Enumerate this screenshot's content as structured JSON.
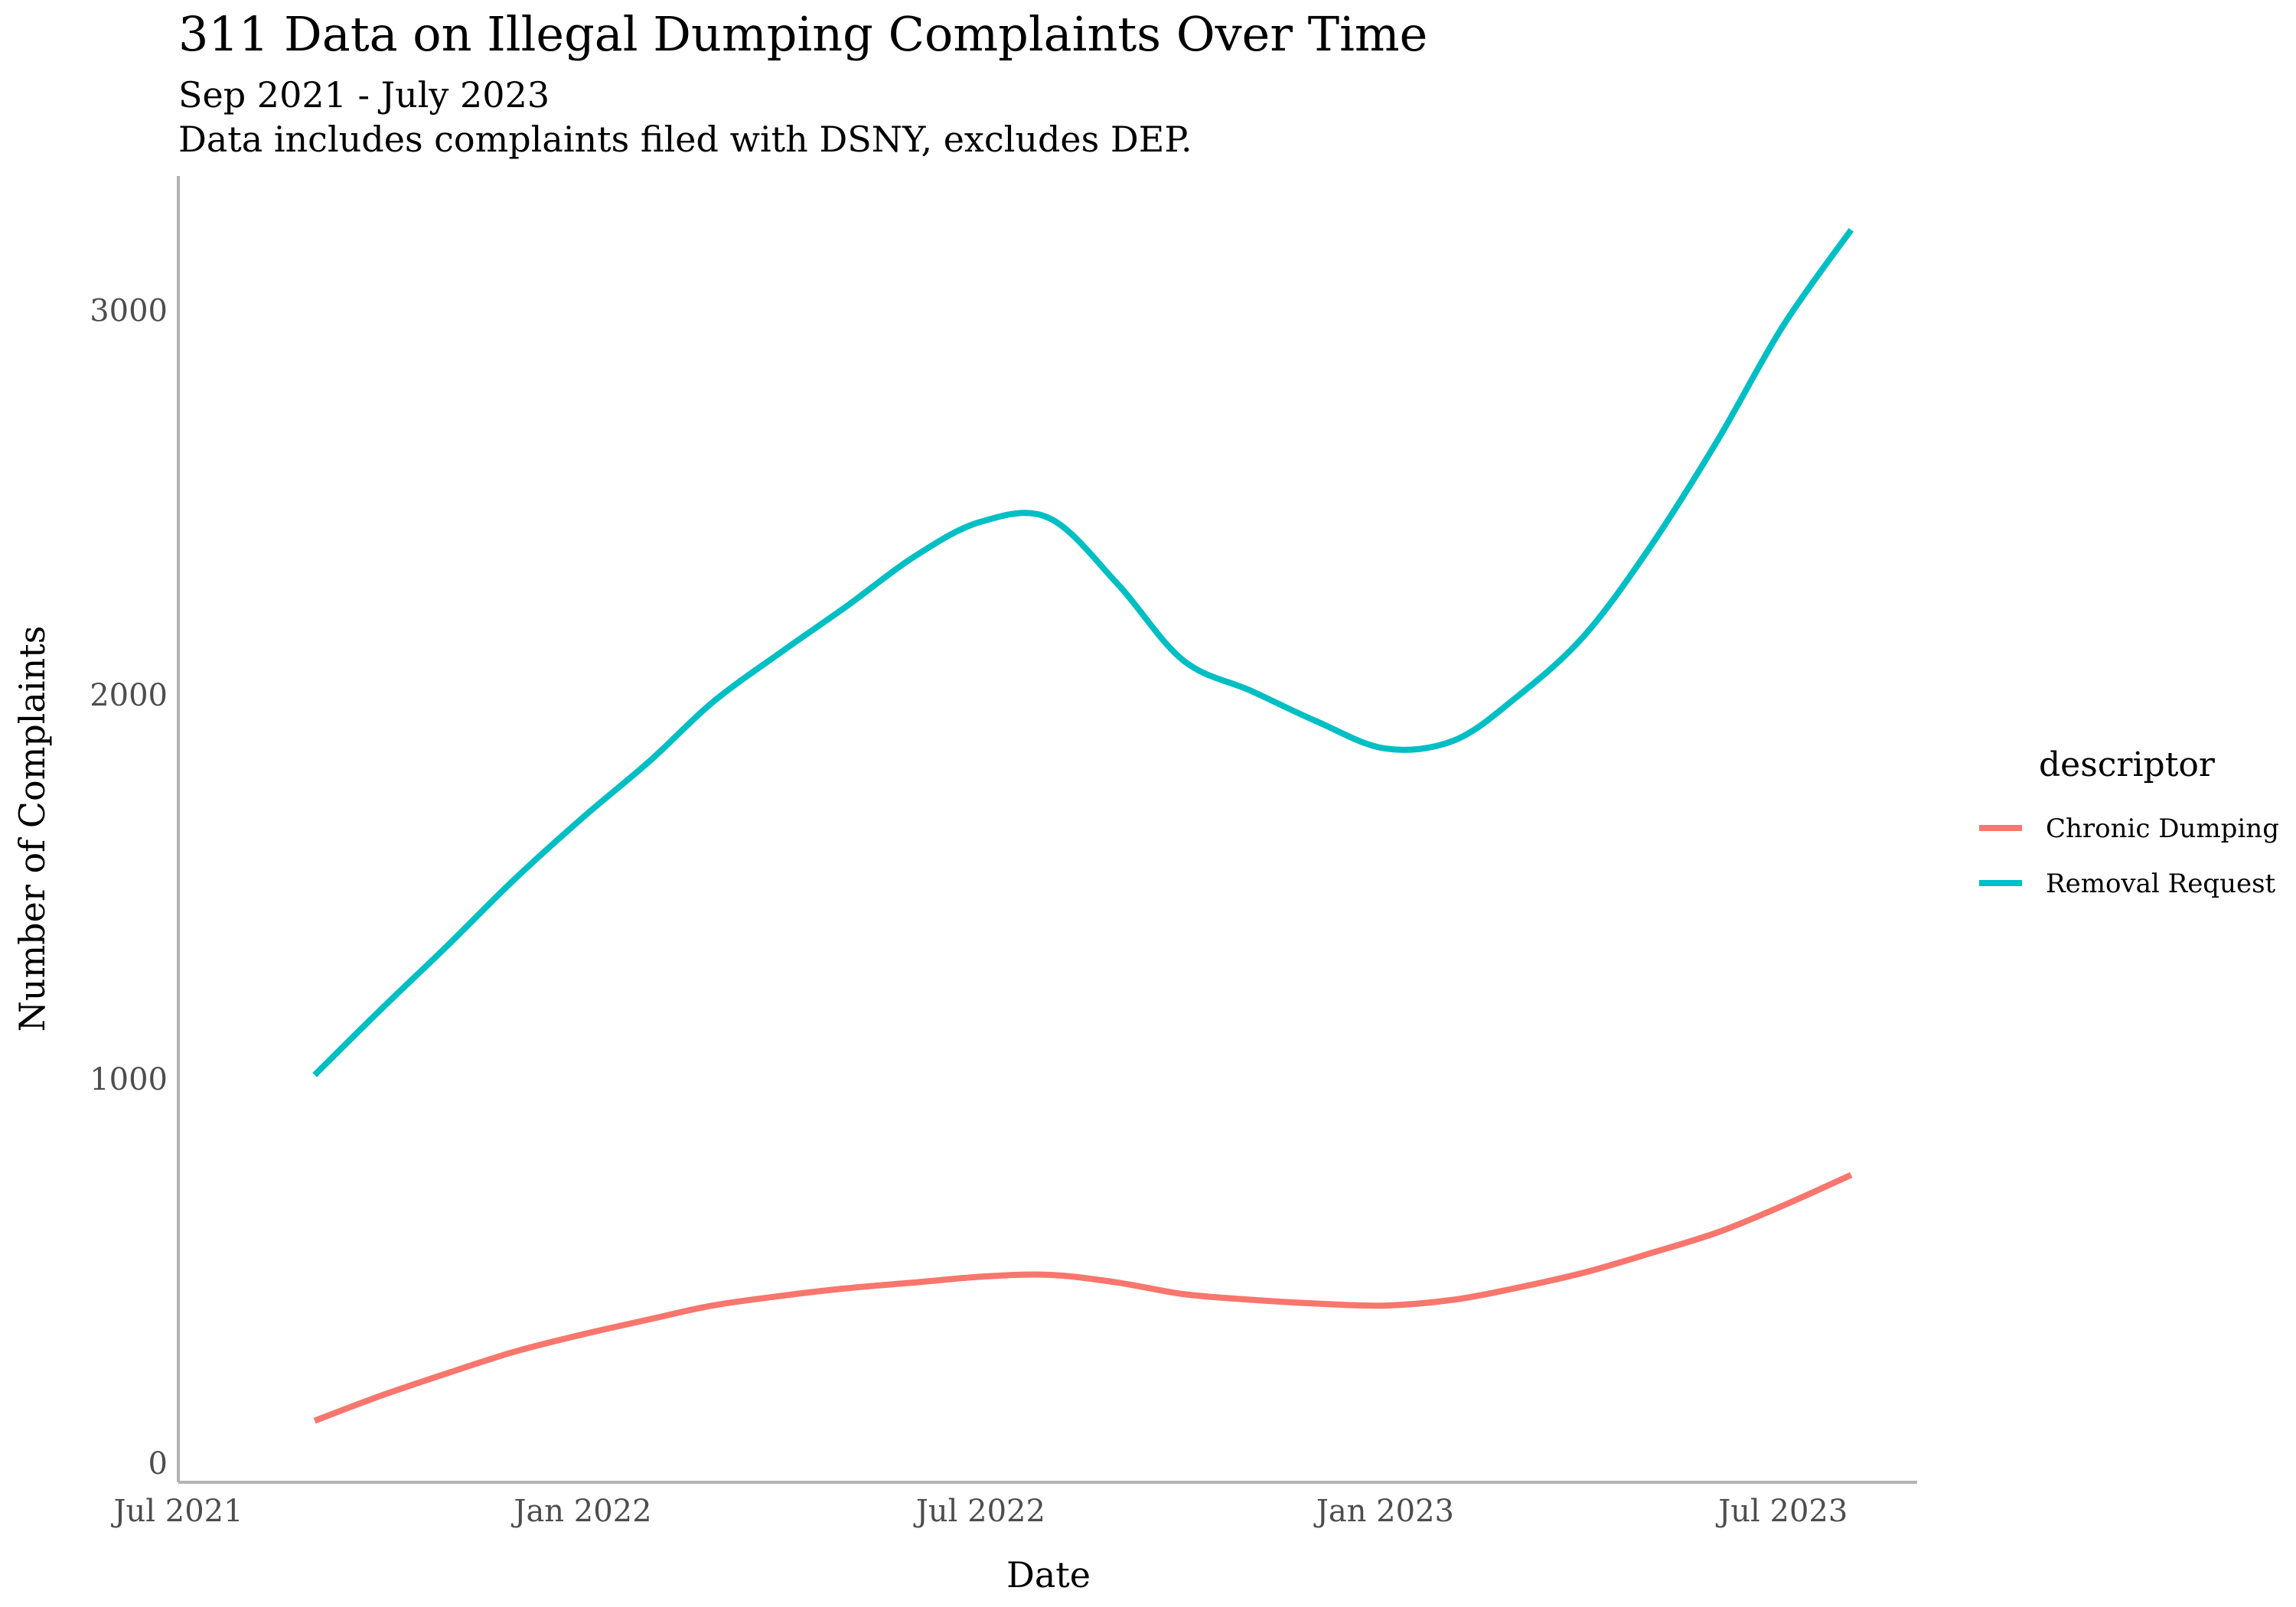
{
  "chart_data": {
    "type": "line",
    "title": "311 Data on Illegal Dumping Complaints Over Time",
    "subtitle": [
      "Sep 2021 - July 2023",
      "Data includes complaints filed with DSNY, excludes DEP."
    ],
    "xlabel": "Date",
    "ylabel": "Number of Complaints",
    "xlim": [
      "2021-07-01",
      "2023-08-31"
    ],
    "ylim": [
      -50,
      3350
    ],
    "x_ticks": [
      {
        "date": "2021-07-01",
        "label": "Jul 2021"
      },
      {
        "date": "2022-01-01",
        "label": "Jan 2022"
      },
      {
        "date": "2022-07-01",
        "label": "Jul 2022"
      },
      {
        "date": "2023-01-01",
        "label": "Jan 2023"
      },
      {
        "date": "2023-07-01",
        "label": "Jul 2023"
      }
    ],
    "y_ticks": [
      0,
      1000,
      2000,
      3000
    ],
    "grid": false,
    "legend": {
      "title": "descriptor",
      "position": "right"
    },
    "series": [
      {
        "name": "Chronic Dumping",
        "color": "#F8766D",
        "x": [
          "2021-09-01",
          "2021-10-01",
          "2021-11-01",
          "2021-12-01",
          "2022-01-01",
          "2022-02-01",
          "2022-03-01",
          "2022-04-01",
          "2022-05-01",
          "2022-06-01",
          "2022-07-01",
          "2022-08-01",
          "2022-09-01",
          "2022-10-01",
          "2022-11-01",
          "2022-12-01",
          "2023-01-01",
          "2023-02-01",
          "2023-03-01",
          "2023-04-01",
          "2023-05-01",
          "2023-06-01",
          "2023-07-01",
          "2023-08-01"
        ],
        "values": [
          110,
          175,
          235,
          290,
          335,
          375,
          410,
          435,
          455,
          470,
          485,
          490,
          470,
          440,
          425,
          415,
          410,
          425,
          455,
          495,
          545,
          600,
          670,
          750
        ]
      },
      {
        "name": "Removal Request",
        "color": "#00BFC4",
        "x": [
          "2021-09-01",
          "2021-10-01",
          "2021-11-01",
          "2021-12-01",
          "2022-01-01",
          "2022-02-01",
          "2022-03-01",
          "2022-04-01",
          "2022-05-01",
          "2022-06-01",
          "2022-07-01",
          "2022-08-01",
          "2022-09-01",
          "2022-10-01",
          "2022-11-01",
          "2022-12-01",
          "2023-01-01",
          "2023-02-01",
          "2023-03-01",
          "2023-04-01",
          "2023-05-01",
          "2023-06-01",
          "2023-07-01",
          "2023-08-01"
        ],
        "values": [
          1010,
          1180,
          1350,
          1520,
          1680,
          1830,
          1980,
          2110,
          2230,
          2360,
          2450,
          2460,
          2290,
          2090,
          2010,
          1930,
          1860,
          1880,
          1990,
          2150,
          2380,
          2660,
          2960,
          3210
        ]
      }
    ]
  }
}
